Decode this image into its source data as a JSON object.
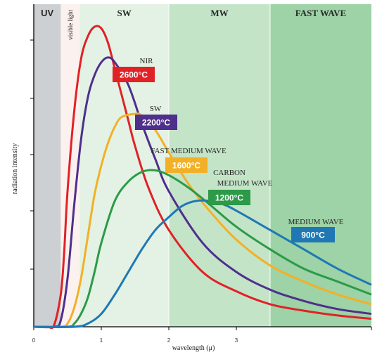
{
  "chart_data": {
    "type": "line",
    "title": "",
    "xlabel": "wavelength (μ)",
    "ylabel": "radiation intensity",
    "xlim": [
      0,
      5
    ],
    "ylim": [
      0,
      1
    ],
    "x_ticks": [
      "0",
      "1",
      "2",
      "3"
    ],
    "y_ticks_count": 5,
    "grid": false,
    "bands": [
      {
        "label": "UV",
        "from": 0,
        "to": 0.4,
        "color": "#cdd0d2",
        "font": "sans"
      },
      {
        "label": "visible light",
        "from": 0.4,
        "to": 0.68,
        "color": "#fbf1ee",
        "font": "serif",
        "vertical": true
      },
      {
        "label": "SW",
        "from": 0.68,
        "to": 2.0,
        "color": "#e3f2e4",
        "font": "serif"
      },
      {
        "label": "MW",
        "from": 2.0,
        "to": 3.5,
        "color": "#c4e4c8",
        "font": "serif"
      },
      {
        "label": "FAST WAVE",
        "from": 3.5,
        "to": 5.0,
        "color": "#9dd3a6",
        "font": "serif"
      }
    ],
    "series": [
      {
        "name": "NIR",
        "temperature": "2600°C",
        "color": "#e02227",
        "points": [
          [
            0.2,
            0.0
          ],
          [
            0.3,
            0.005
          ],
          [
            0.4,
            0.1
          ],
          [
            0.45,
            0.23
          ],
          [
            0.5,
            0.42
          ],
          [
            0.6,
            0.67
          ],
          [
            0.7,
            0.83
          ],
          [
            0.8,
            0.9
          ],
          [
            0.9,
            0.93
          ],
          [
            1.0,
            0.925
          ],
          [
            1.1,
            0.88
          ],
          [
            1.2,
            0.8
          ],
          [
            1.3,
            0.72
          ],
          [
            1.4,
            0.64
          ],
          [
            1.5,
            0.56
          ],
          [
            1.7,
            0.43
          ],
          [
            2.0,
            0.3
          ],
          [
            2.5,
            0.17
          ],
          [
            3.0,
            0.11
          ],
          [
            3.5,
            0.07
          ],
          [
            4.0,
            0.05
          ],
          [
            4.5,
            0.035
          ],
          [
            5.0,
            0.025
          ]
        ]
      },
      {
        "name": "SW",
        "temperature": "2200°C",
        "color": "#4e2f8c",
        "points": [
          [
            0.3,
            0.0
          ],
          [
            0.4,
            0.02
          ],
          [
            0.5,
            0.15
          ],
          [
            0.6,
            0.38
          ],
          [
            0.7,
            0.58
          ],
          [
            0.8,
            0.71
          ],
          [
            0.9,
            0.78
          ],
          [
            1.0,
            0.82
          ],
          [
            1.1,
            0.835
          ],
          [
            1.2,
            0.82
          ],
          [
            1.4,
            0.75
          ],
          [
            1.6,
            0.63
          ],
          [
            1.8,
            0.52
          ],
          [
            2.0,
            0.42
          ],
          [
            2.5,
            0.26
          ],
          [
            3.0,
            0.17
          ],
          [
            3.5,
            0.115
          ],
          [
            4.0,
            0.08
          ],
          [
            4.5,
            0.055
          ],
          [
            5.0,
            0.04
          ]
        ]
      },
      {
        "name": "FAST MEDIUM WAVE",
        "temperature": "1600°C",
        "color": "#f3b026",
        "points": [
          [
            0.4,
            0.0
          ],
          [
            0.5,
            0.01
          ],
          [
            0.6,
            0.06
          ],
          [
            0.7,
            0.15
          ],
          [
            0.8,
            0.28
          ],
          [
            0.9,
            0.41
          ],
          [
            1.0,
            0.5
          ],
          [
            1.1,
            0.57
          ],
          [
            1.2,
            0.62
          ],
          [
            1.3,
            0.65
          ],
          [
            1.5,
            0.66
          ],
          [
            1.6,
            0.655
          ],
          [
            1.8,
            0.61
          ],
          [
            2.0,
            0.54
          ],
          [
            2.3,
            0.44
          ],
          [
            2.6,
            0.36
          ],
          [
            3.0,
            0.27
          ],
          [
            3.5,
            0.19
          ],
          [
            4.0,
            0.14
          ],
          [
            4.5,
            0.1
          ],
          [
            5.0,
            0.07
          ]
        ]
      },
      {
        "name": "CARBON MEDIUM WAVE",
        "temperature": "1200°C",
        "color": "#2c9a48",
        "points": [
          [
            0.5,
            0.0
          ],
          [
            0.6,
            0.01
          ],
          [
            0.7,
            0.04
          ],
          [
            0.8,
            0.09
          ],
          [
            0.9,
            0.17
          ],
          [
            1.0,
            0.26
          ],
          [
            1.2,
            0.39
          ],
          [
            1.4,
            0.45
          ],
          [
            1.6,
            0.48
          ],
          [
            1.8,
            0.485
          ],
          [
            2.0,
            0.47
          ],
          [
            2.3,
            0.43
          ],
          [
            2.6,
            0.38
          ],
          [
            3.0,
            0.31
          ],
          [
            3.5,
            0.24
          ],
          [
            4.0,
            0.18
          ],
          [
            4.5,
            0.14
          ],
          [
            5.0,
            0.1
          ]
        ]
      },
      {
        "name": "MEDIUM WAVE",
        "temperature": "900°C",
        "color": "#1f78b4",
        "points": [
          [
            0.6,
            0.0
          ],
          [
            0.8,
            0.01
          ],
          [
            1.0,
            0.04
          ],
          [
            1.2,
            0.1
          ],
          [
            1.4,
            0.17
          ],
          [
            1.6,
            0.24
          ],
          [
            1.8,
            0.3
          ],
          [
            2.0,
            0.34
          ],
          [
            2.2,
            0.375
          ],
          [
            2.4,
            0.39
          ],
          [
            2.6,
            0.39
          ],
          [
            2.8,
            0.38
          ],
          [
            3.0,
            0.36
          ],
          [
            3.5,
            0.3
          ],
          [
            4.0,
            0.24
          ],
          [
            4.5,
            0.18
          ],
          [
            5.0,
            0.13
          ]
        ]
      }
    ]
  }
}
